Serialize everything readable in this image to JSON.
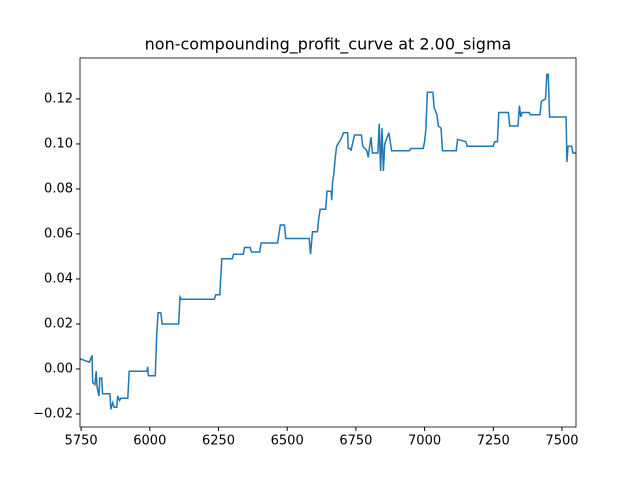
{
  "chart_data": {
    "type": "line",
    "title": "non-compounding_profit_curve at 2.00_sigma",
    "color": "#1f77b4",
    "xlim": [
      5746,
      7551
    ],
    "xticks": [
      5750,
      6000,
      6250,
      6500,
      6750,
      7000,
      7250,
      7500
    ],
    "ylim": [
      -0.0258,
      0.1382
    ],
    "yticks": [
      {
        "value": -0.02,
        "label": "−0.02"
      },
      {
        "value": 0,
        "label": "0.00"
      },
      {
        "value": 0.02,
        "label": "0.02"
      },
      {
        "value": 0.04,
        "label": "0.04"
      },
      {
        "value": 0.06,
        "label": "0.06"
      },
      {
        "value": 0.08,
        "label": "0.08"
      },
      {
        "value": 0.1,
        "label": "0.10"
      },
      {
        "value": 0.12,
        "label": "0.12"
      }
    ],
    "x": [
      5746,
      5780,
      5790,
      5792,
      5800,
      5805,
      5808,
      5815,
      5818,
      5825,
      5828,
      5855,
      5858,
      5865,
      5870,
      5880,
      5883,
      5890,
      5895,
      5920,
      5925,
      5990,
      5992,
      5995,
      6020,
      6025,
      6030,
      6040,
      6045,
      6105,
      6110,
      6115,
      6235,
      6240,
      6255,
      6258,
      6262,
      6300,
      6305,
      6340,
      6345,
      6365,
      6370,
      6400,
      6405,
      6465,
      6470,
      6475,
      6490,
      6495,
      6580,
      6585,
      6590,
      6592,
      6610,
      6615,
      6620,
      6640,
      6645,
      6660,
      6662,
      6665,
      6670,
      6675,
      6680,
      6695,
      6705,
      6720,
      6722,
      6730,
      6732,
      6745,
      6770,
      6775,
      6790,
      6795,
      6800,
      6805,
      6810,
      6830,
      6835,
      6840,
      6845,
      6850,
      6855,
      6870,
      6880,
      6945,
      6950,
      6995,
      7000,
      7005,
      7010,
      7030,
      7035,
      7045,
      7050,
      7060,
      7065,
      7115,
      7120,
      7150,
      7155,
      7250,
      7255,
      7265,
      7270,
      7305,
      7310,
      7340,
      7345,
      7350,
      7355,
      7380,
      7385,
      7420,
      7425,
      7440,
      7445,
      7450,
      7455,
      7515,
      7518,
      7522,
      7535,
      7540,
      7551
    ],
    "values": [
      0.0045,
      0.003,
      0.006,
      -0.006,
      -0.007,
      -0.001,
      -0.008,
      -0.012,
      -0.004,
      -0.004,
      -0.011,
      -0.011,
      -0.018,
      -0.015,
      -0.017,
      -0.017,
      -0.012,
      -0.014,
      -0.013,
      -0.013,
      -0.001,
      -0.001,
      0.001,
      -0.003,
      -0.003,
      0.015,
      0.025,
      0.025,
      0.02,
      0.02,
      0.032,
      0.031,
      0.031,
      0.033,
      0.033,
      0.04,
      0.049,
      0.049,
      0.051,
      0.051,
      0.054,
      0.054,
      0.052,
      0.052,
      0.056,
      0.056,
      0.06,
      0.064,
      0.064,
      0.058,
      0.058,
      0.051,
      0.058,
      0.061,
      0.061,
      0.067,
      0.071,
      0.071,
      0.079,
      0.079,
      0.075,
      0.083,
      0.087,
      0.094,
      0.099,
      0.102,
      0.105,
      0.105,
      0.098,
      0.098,
      0.097,
      0.104,
      0.104,
      0.099,
      0.097,
      0.094,
      0.099,
      0.103,
      0.096,
      0.096,
      0.109,
      0.088,
      0.107,
      0.088,
      0.1,
      0.105,
      0.097,
      0.097,
      0.098,
      0.098,
      0.101,
      0.107,
      0.123,
      0.123,
      0.116,
      0.113,
      0.108,
      0.107,
      0.097,
      0.097,
      0.102,
      0.101,
      0.099,
      0.099,
      0.101,
      0.101,
      0.114,
      0.114,
      0.108,
      0.108,
      0.117,
      0.112,
      0.114,
      0.114,
      0.113,
      0.113,
      0.119,
      0.12,
      0.131,
      0.131,
      0.112,
      0.112,
      0.092,
      0.099,
      0.099,
      0.096,
      0.096
    ]
  }
}
